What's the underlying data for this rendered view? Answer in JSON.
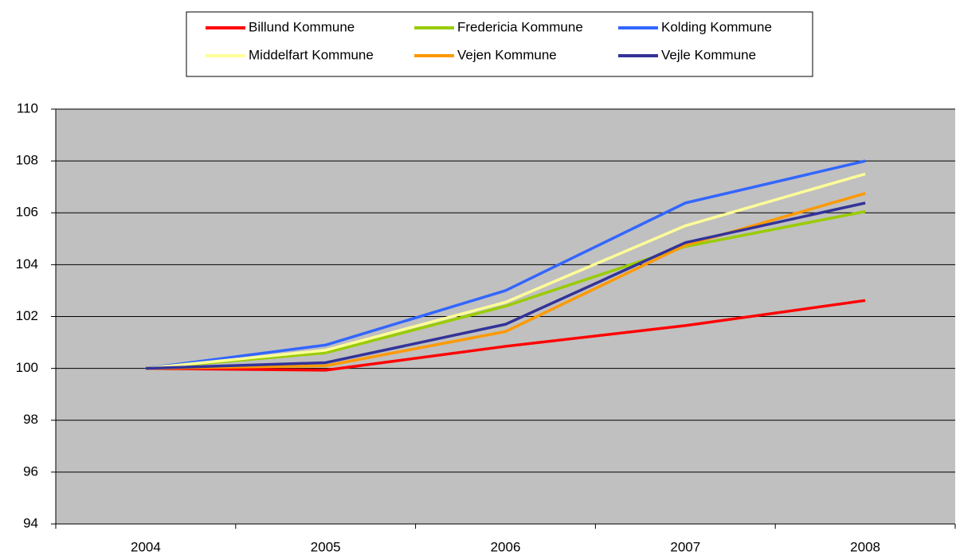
{
  "chart_data": {
    "type": "line",
    "categories": [
      "2004",
      "2005",
      "2006",
      "2007",
      "2008"
    ],
    "series": [
      {
        "name": "Billund Kommune",
        "color": "#ff0000",
        "values": [
          100,
          99.93,
          100.85,
          101.65,
          102.62
        ]
      },
      {
        "name": "Fredericia Kommune",
        "color": "#99cc00",
        "values": [
          100,
          100.6,
          102.4,
          104.7,
          106.05
        ]
      },
      {
        "name": "Kolding Kommune",
        "color": "#3366ff",
        "values": [
          100,
          100.9,
          103.0,
          106.38,
          108.0
        ]
      },
      {
        "name": "Middelfart Kommune",
        "color": "#ffff99",
        "values": [
          100,
          100.7,
          102.55,
          105.5,
          107.5
        ]
      },
      {
        "name": "Vejen Kommune",
        "color": "#ff9900",
        "values": [
          100,
          100.1,
          101.42,
          104.75,
          106.75
        ]
      },
      {
        "name": "Vejle Kommune",
        "color": "#333399",
        "values": [
          100,
          100.22,
          101.7,
          104.85,
          106.38
        ]
      }
    ],
    "ylim": [
      94,
      110
    ],
    "yticks": [
      94,
      96,
      98,
      100,
      102,
      104,
      106,
      108,
      110
    ],
    "grid": true,
    "legend": "top",
    "plot_background": "#c0c0c0"
  }
}
